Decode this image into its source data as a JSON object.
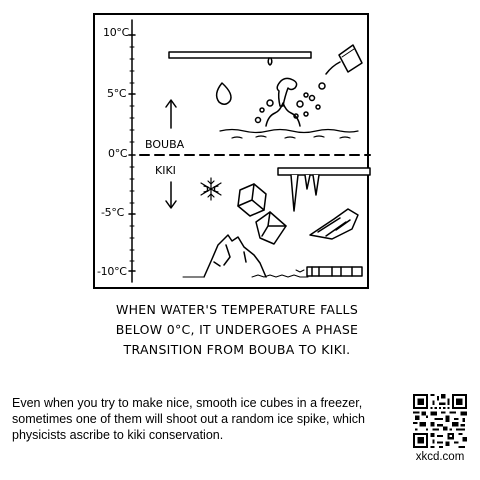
{
  "comic": {
    "axis_ticks": [
      "10°C",
      "5°C",
      "0°C",
      "-5°C",
      "-10°C"
    ],
    "label_above": "BOUBA",
    "label_below": "KIKI",
    "caption_lines": [
      "WHEN WATER'S TEMPERATURE FALLS",
      "BELOW 0°C, IT UNDERGOES A PHASE",
      "TRANSITION FROM BOUBA TO KIKI."
    ]
  },
  "alt_text": "Even when you try to make nice, smooth ice cubes in a freezer, sometimes one of them will shoot out a random ice spike, which physicists ascribe to kiki conservation.",
  "site": "xkcd.com"
}
